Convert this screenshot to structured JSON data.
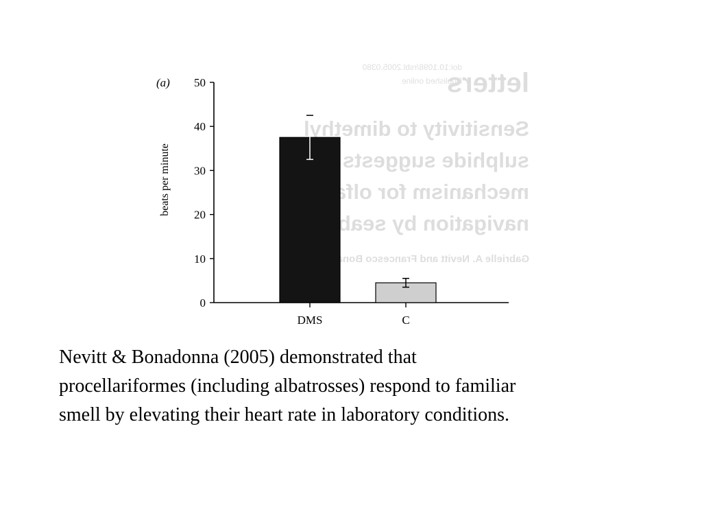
{
  "chart_data": {
    "type": "bar",
    "panel_label": "(a)",
    "ylabel": "beats per minute",
    "categories": [
      "DMS",
      "C"
    ],
    "values": [
      37.5,
      4.5
    ],
    "error": [
      5,
      1
    ],
    "bar_colors": [
      "#141414",
      "#cfcfcf"
    ],
    "ylim": [
      0,
      50
    ],
    "yticks": [
      0,
      10,
      20,
      30,
      40,
      50
    ],
    "grid": false
  },
  "caption": {
    "lines": [
      "Nevitt & Bonadonna (2005) demonstrated that",
      "procellariformes (including albatrosses) respond to familiar",
      "smell by elevating their heart rate in laboratory conditions."
    ]
  },
  "background_scan": {
    "lines": [
      "doi:10.1098/rsbl.2005.0380",
      "Published online",
      "letters",
      "Sensitivity to dimethyl",
      "sulphide suggests a",
      "mechanism for olfactory",
      "navigation by seabirds",
      "Gabrielle A. Nevitt and Francesco Bonadonna"
    ]
  }
}
